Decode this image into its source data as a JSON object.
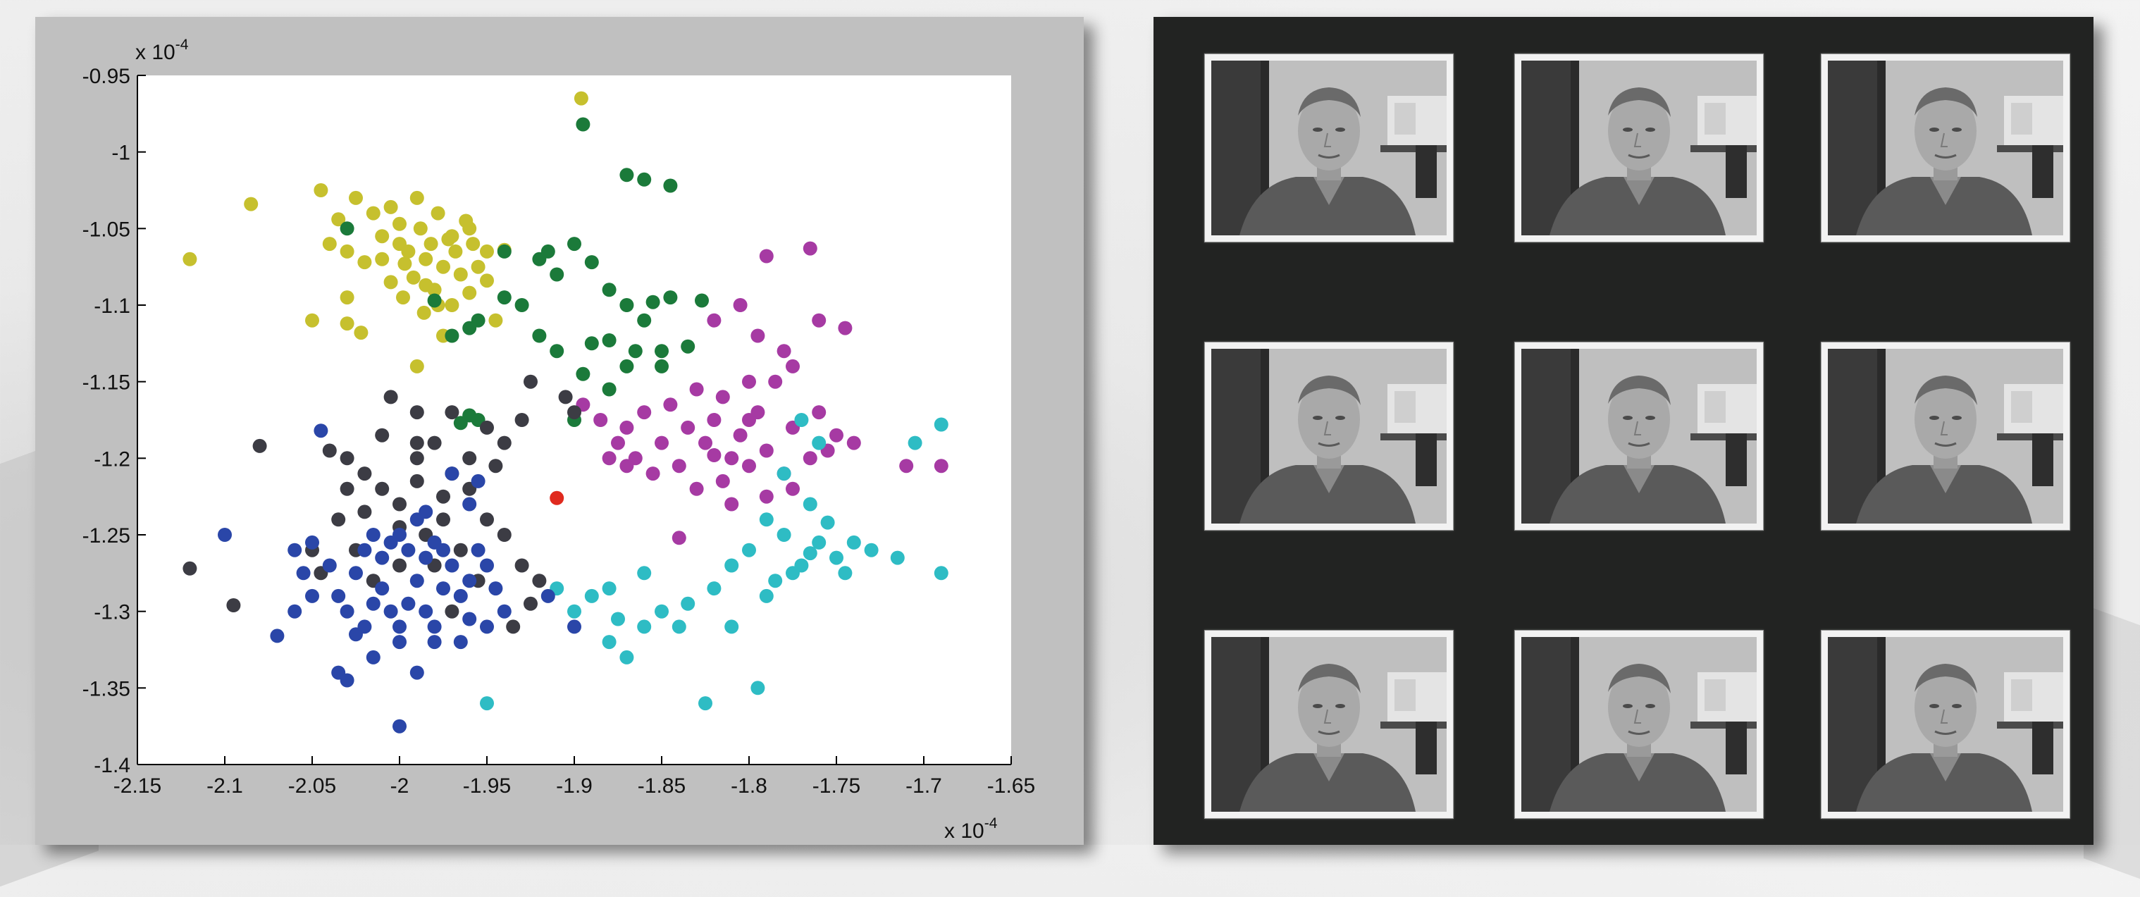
{
  "chart_data": {
    "type": "scatter",
    "title": "",
    "xlabel": "",
    "ylabel": "",
    "xlim": [
      -2.15,
      -1.65
    ],
    "ylim": [
      -1.4,
      -0.95
    ],
    "x_exponent_label": "x 10",
    "x_exponent_power": "-4",
    "y_exponent_label": "x 10",
    "y_exponent_power": "-4",
    "x_ticks": [
      -2.15,
      -2.1,
      -2.05,
      -2,
      -1.95,
      -1.9,
      -1.85,
      -1.8,
      -1.75,
      -1.7,
      -1.65
    ],
    "x_tick_labels": [
      "-2.15",
      "-2.1",
      "-2.05",
      "-2",
      "-1.95",
      "-1.9",
      "-1.85",
      "-1.8",
      "-1.75",
      "-1.7",
      "-1.65"
    ],
    "y_ticks": [
      -0.95,
      -1,
      -1.05,
      -1.1,
      -1.15,
      -1.2,
      -1.25,
      -1.3,
      -1.35,
      -1.4
    ],
    "y_tick_labels": [
      "-0.95",
      "-1",
      "-1.05",
      "-1.1",
      "-1.15",
      "-1.2",
      "-1.25",
      "-1.3",
      "-1.35",
      "-1.4"
    ],
    "grid": false,
    "series": [
      {
        "color": "#c6c02e",
        "points": [
          [
            -2.12,
            -1.07
          ],
          [
            -2.085,
            -1.034
          ],
          [
            -2.05,
            -1.11
          ],
          [
            -2.04,
            -1.06
          ],
          [
            -2.035,
            -1.044
          ],
          [
            -2.03,
            -1.095
          ],
          [
            -2.025,
            -1.03
          ],
          [
            -2.02,
            -1.072
          ],
          [
            -2.015,
            -1.04
          ],
          [
            -2.01,
            -1.055
          ],
          [
            -2.005,
            -1.085
          ],
          [
            -2.0,
            -1.047
          ],
          [
            -1.998,
            -1.095
          ],
          [
            -1.995,
            -1.065
          ],
          [
            -1.992,
            -1.082
          ],
          [
            -1.99,
            -1.03
          ],
          [
            -1.988,
            -1.05
          ],
          [
            -1.985,
            -1.07
          ],
          [
            -1.982,
            -1.06
          ],
          [
            -1.98,
            -1.09
          ],
          [
            -1.978,
            -1.04
          ],
          [
            -1.975,
            -1.075
          ],
          [
            -1.972,
            -1.057
          ],
          [
            -1.97,
            -1.1
          ],
          [
            -1.968,
            -1.065
          ],
          [
            -1.965,
            -1.08
          ],
          [
            -1.962,
            -1.045
          ],
          [
            -1.96,
            -1.092
          ],
          [
            -1.958,
            -1.06
          ],
          [
            -1.955,
            -1.075
          ],
          [
            -1.95,
            -1.084
          ],
          [
            -1.945,
            -1.11
          ],
          [
            -1.94,
            -1.064
          ],
          [
            -2.005,
            -1.036
          ],
          [
            -2.022,
            -1.118
          ],
          [
            -2.01,
            -1.07
          ],
          [
            -1.997,
            -1.073
          ],
          [
            -1.986,
            -1.105
          ],
          [
            -1.975,
            -1.12
          ],
          [
            -1.99,
            -1.14
          ],
          [
            -1.896,
            -0.965
          ],
          [
            -2.045,
            -1.025
          ],
          [
            -2.03,
            -1.065
          ],
          [
            -1.985,
            -1.087
          ],
          [
            -1.97,
            -1.055
          ],
          [
            -2.0,
            -1.06
          ],
          [
            -1.978,
            -1.1
          ],
          [
            -2.03,
            -1.112
          ],
          [
            -1.96,
            -1.05
          ],
          [
            -1.95,
            -1.065
          ]
        ]
      },
      {
        "color": "#1b7a3a",
        "points": [
          [
            -1.895,
            -0.982
          ],
          [
            -1.87,
            -1.015
          ],
          [
            -1.86,
            -1.018
          ],
          [
            -1.845,
            -1.022
          ],
          [
            -1.94,
            -1.065
          ],
          [
            -1.92,
            -1.07
          ],
          [
            -1.91,
            -1.08
          ],
          [
            -1.9,
            -1.06
          ],
          [
            -1.89,
            -1.072
          ],
          [
            -1.88,
            -1.09
          ],
          [
            -1.87,
            -1.1
          ],
          [
            -1.86,
            -1.11
          ],
          [
            -1.855,
            -1.098
          ],
          [
            -1.845,
            -1.095
          ],
          [
            -1.85,
            -1.13
          ],
          [
            -1.87,
            -1.14
          ],
          [
            -1.88,
            -1.155
          ],
          [
            -1.895,
            -1.145
          ],
          [
            -1.91,
            -1.13
          ],
          [
            -1.92,
            -1.12
          ],
          [
            -1.93,
            -1.1
          ],
          [
            -1.94,
            -1.095
          ],
          [
            -1.955,
            -1.11
          ],
          [
            -1.96,
            -1.115
          ],
          [
            -1.97,
            -1.12
          ],
          [
            -1.98,
            -1.097
          ],
          [
            -1.96,
            -1.172
          ],
          [
            -1.965,
            -1.177
          ],
          [
            -1.955,
            -1.175
          ],
          [
            -1.9,
            -1.175
          ],
          [
            -1.89,
            -1.125
          ],
          [
            -1.88,
            -1.123
          ],
          [
            -1.865,
            -1.13
          ],
          [
            -1.85,
            -1.14
          ],
          [
            -1.835,
            -1.127
          ],
          [
            -1.827,
            -1.097
          ],
          [
            -2.03,
            -1.05
          ],
          [
            -1.915,
            -1.065
          ]
        ]
      },
      {
        "color": "#a63aa3",
        "points": [
          [
            -1.79,
            -1.068
          ],
          [
            -1.765,
            -1.063
          ],
          [
            -1.805,
            -1.1
          ],
          [
            -1.82,
            -1.11
          ],
          [
            -1.795,
            -1.12
          ],
          [
            -1.78,
            -1.13
          ],
          [
            -1.76,
            -1.11
          ],
          [
            -1.745,
            -1.115
          ],
          [
            -1.775,
            -1.14
          ],
          [
            -1.8,
            -1.15
          ],
          [
            -1.815,
            -1.16
          ],
          [
            -1.83,
            -1.155
          ],
          [
            -1.845,
            -1.165
          ],
          [
            -1.86,
            -1.17
          ],
          [
            -1.87,
            -1.18
          ],
          [
            -1.875,
            -1.19
          ],
          [
            -1.865,
            -1.2
          ],
          [
            -1.85,
            -1.19
          ],
          [
            -1.835,
            -1.18
          ],
          [
            -1.82,
            -1.175
          ],
          [
            -1.805,
            -1.185
          ],
          [
            -1.79,
            -1.195
          ],
          [
            -1.775,
            -1.18
          ],
          [
            -1.76,
            -1.17
          ],
          [
            -1.75,
            -1.185
          ],
          [
            -1.765,
            -1.2
          ],
          [
            -1.78,
            -1.21
          ],
          [
            -1.8,
            -1.205
          ],
          [
            -1.815,
            -1.215
          ],
          [
            -1.83,
            -1.22
          ],
          [
            -1.84,
            -1.205
          ],
          [
            -1.855,
            -1.21
          ],
          [
            -1.87,
            -1.205
          ],
          [
            -1.88,
            -1.2
          ],
          [
            -1.885,
            -1.175
          ],
          [
            -1.895,
            -1.165
          ],
          [
            -1.81,
            -1.23
          ],
          [
            -1.79,
            -1.225
          ],
          [
            -1.775,
            -1.22
          ],
          [
            -1.755,
            -1.195
          ],
          [
            -1.74,
            -1.19
          ],
          [
            -1.71,
            -1.205
          ],
          [
            -1.69,
            -1.205
          ],
          [
            -1.785,
            -1.15
          ],
          [
            -1.795,
            -1.17
          ],
          [
            -1.825,
            -1.19
          ],
          [
            -1.81,
            -1.2
          ],
          [
            -1.84,
            -1.252
          ],
          [
            -1.8,
            -1.175
          ],
          [
            -1.82,
            -1.198
          ]
        ]
      },
      {
        "color": "#2ebcc4",
        "points": [
          [
            -1.77,
            -1.175
          ],
          [
            -1.76,
            -1.19
          ],
          [
            -1.78,
            -1.21
          ],
          [
            -1.765,
            -1.23
          ],
          [
            -1.79,
            -1.24
          ],
          [
            -1.78,
            -1.25
          ],
          [
            -1.76,
            -1.255
          ],
          [
            -1.75,
            -1.265
          ],
          [
            -1.74,
            -1.255
          ],
          [
            -1.73,
            -1.26
          ],
          [
            -1.715,
            -1.265
          ],
          [
            -1.69,
            -1.275
          ],
          [
            -1.69,
            -1.178
          ],
          [
            -1.705,
            -1.19
          ],
          [
            -1.775,
            -1.275
          ],
          [
            -1.785,
            -1.28
          ],
          [
            -1.8,
            -1.26
          ],
          [
            -1.81,
            -1.27
          ],
          [
            -1.82,
            -1.285
          ],
          [
            -1.835,
            -1.295
          ],
          [
            -1.85,
            -1.3
          ],
          [
            -1.86,
            -1.31
          ],
          [
            -1.875,
            -1.305
          ],
          [
            -1.88,
            -1.32
          ],
          [
            -1.87,
            -1.33
          ],
          [
            -1.89,
            -1.29
          ],
          [
            -1.9,
            -1.3
          ],
          [
            -1.91,
            -1.285
          ],
          [
            -1.84,
            -1.31
          ],
          [
            -1.825,
            -1.36
          ],
          [
            -1.795,
            -1.35
          ],
          [
            -1.95,
            -1.36
          ],
          [
            -1.86,
            -1.275
          ],
          [
            -1.88,
            -1.285
          ],
          [
            -1.79,
            -1.29
          ],
          [
            -1.77,
            -1.27
          ],
          [
            -1.755,
            -1.242
          ],
          [
            -1.765,
            -1.262
          ],
          [
            -1.745,
            -1.275
          ],
          [
            -1.81,
            -1.31
          ]
        ]
      },
      {
        "color": "#3c3c44",
        "points": [
          [
            -2.12,
            -1.272
          ],
          [
            -2.095,
            -1.296
          ],
          [
            -2.08,
            -1.192
          ],
          [
            -2.04,
            -1.195
          ],
          [
            -2.03,
            -1.2
          ],
          [
            -2.02,
            -1.21
          ],
          [
            -2.01,
            -1.22
          ],
          [
            -2.0,
            -1.23
          ],
          [
            -1.99,
            -1.2
          ],
          [
            -1.98,
            -1.19
          ],
          [
            -1.97,
            -1.21
          ],
          [
            -1.96,
            -1.22
          ],
          [
            -1.95,
            -1.24
          ],
          [
            -1.94,
            -1.25
          ],
          [
            -1.93,
            -1.27
          ],
          [
            -1.92,
            -1.28
          ],
          [
            -1.925,
            -1.295
          ],
          [
            -1.935,
            -1.31
          ],
          [
            -2.05,
            -1.26
          ],
          [
            -2.045,
            -1.275
          ],
          [
            -2.035,
            -1.24
          ],
          [
            -2.025,
            -1.26
          ],
          [
            -2.015,
            -1.28
          ],
          [
            -2.0,
            -1.27
          ],
          [
            -1.985,
            -1.25
          ],
          [
            -1.975,
            -1.24
          ],
          [
            -1.965,
            -1.26
          ],
          [
            -1.955,
            -1.28
          ],
          [
            -2.005,
            -1.16
          ],
          [
            -1.99,
            -1.17
          ],
          [
            -1.97,
            -1.17
          ],
          [
            -1.95,
            -1.18
          ],
          [
            -1.93,
            -1.175
          ],
          [
            -1.925,
            -1.15
          ],
          [
            -1.94,
            -1.19
          ],
          [
            -2.0,
            -1.245
          ],
          [
            -2.01,
            -1.185
          ],
          [
            -1.96,
            -1.2
          ],
          [
            -1.945,
            -1.205
          ],
          [
            -1.975,
            -1.225
          ],
          [
            -2.02,
            -1.235
          ],
          [
            -1.99,
            -1.215
          ],
          [
            -1.9,
            -1.17
          ],
          [
            -1.905,
            -1.16
          ],
          [
            -1.98,
            -1.27
          ],
          [
            -1.97,
            -1.3
          ],
          [
            -1.99,
            -1.19
          ],
          [
            -2.03,
            -1.22
          ]
        ]
      },
      {
        "color": "#2a46a8",
        "points": [
          [
            -2.045,
            -1.182
          ],
          [
            -2.1,
            -1.25
          ],
          [
            -2.07,
            -1.316
          ],
          [
            -2.06,
            -1.3
          ],
          [
            -2.05,
            -1.29
          ],
          [
            -2.055,
            -1.275
          ],
          [
            -2.04,
            -1.27
          ],
          [
            -2.035,
            -1.29
          ],
          [
            -2.03,
            -1.3
          ],
          [
            -2.02,
            -1.31
          ],
          [
            -2.015,
            -1.295
          ],
          [
            -2.01,
            -1.285
          ],
          [
            -2.005,
            -1.3
          ],
          [
            -2.0,
            -1.31
          ],
          [
            -1.995,
            -1.295
          ],
          [
            -1.99,
            -1.28
          ],
          [
            -1.985,
            -1.3
          ],
          [
            -1.98,
            -1.31
          ],
          [
            -1.975,
            -1.285
          ],
          [
            -1.97,
            -1.27
          ],
          [
            -1.965,
            -1.29
          ],
          [
            -1.96,
            -1.305
          ],
          [
            -1.955,
            -1.26
          ],
          [
            -1.95,
            -1.27
          ],
          [
            -2.025,
            -1.275
          ],
          [
            -2.02,
            -1.26
          ],
          [
            -2.015,
            -1.25
          ],
          [
            -2.01,
            -1.265
          ],
          [
            -2.005,
            -1.255
          ],
          [
            -2.0,
            -1.25
          ],
          [
            -1.995,
            -1.26
          ],
          [
            -1.99,
            -1.24
          ],
          [
            -1.985,
            -1.235
          ],
          [
            -1.98,
            -1.255
          ],
          [
            -1.975,
            -1.26
          ],
          [
            -2.035,
            -1.34
          ],
          [
            -2.03,
            -1.345
          ],
          [
            -2.0,
            -1.375
          ],
          [
            -1.99,
            -1.34
          ],
          [
            -2.015,
            -1.33
          ],
          [
            -1.98,
            -1.32
          ],
          [
            -1.965,
            -1.32
          ],
          [
            -2.05,
            -1.255
          ],
          [
            -2.06,
            -1.26
          ],
          [
            -1.945,
            -1.285
          ],
          [
            -1.94,
            -1.3
          ],
          [
            -1.97,
            -1.21
          ],
          [
            -1.96,
            -1.23
          ],
          [
            -1.955,
            -1.215
          ],
          [
            -1.915,
            -1.29
          ],
          [
            -1.9,
            -1.31
          ],
          [
            -2.0,
            -1.32
          ],
          [
            -2.025,
            -1.315
          ],
          [
            -1.95,
            -1.31
          ],
          [
            -1.96,
            -1.28
          ],
          [
            -1.985,
            -1.265
          ]
        ]
      },
      {
        "color": "#e02a1e",
        "points": [
          [
            -1.91,
            -1.226
          ]
        ]
      }
    ]
  },
  "faces": {
    "count": 9,
    "description_label": ""
  }
}
